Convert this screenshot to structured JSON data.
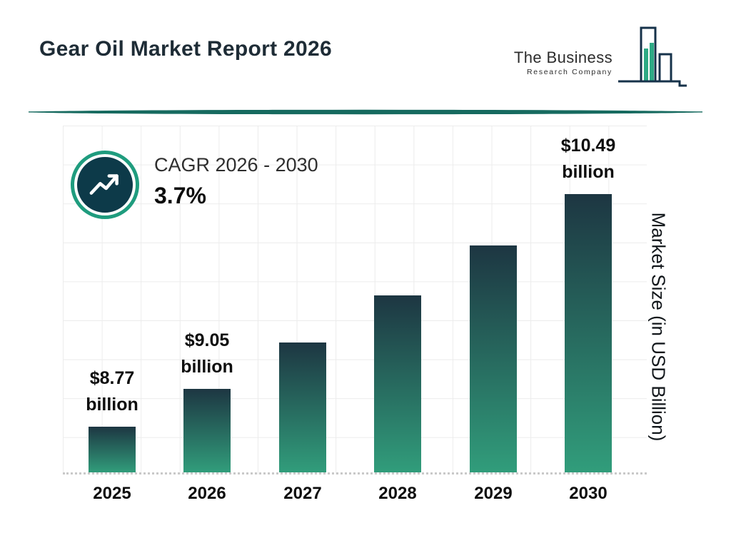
{
  "header": {
    "title": "Gear Oil Market Report 2026",
    "logo": {
      "line1": "The Business",
      "line2": "Research Company"
    }
  },
  "cagr": {
    "label": "CAGR 2026 - 2030",
    "value": "3.7%"
  },
  "chart_data": {
    "type": "bar",
    "title": "Gear Oil Market Report 2026",
    "categories": [
      "2025",
      "2026",
      "2027",
      "2028",
      "2029",
      "2030"
    ],
    "values": [
      8.77,
      9.05,
      9.39,
      9.74,
      10.11,
      10.49
    ],
    "value_labels": [
      [
        "$8.77",
        "billion"
      ],
      [
        "$9.05",
        "billion"
      ],
      null,
      null,
      null,
      [
        "$10.49",
        "billion"
      ]
    ],
    "xlabel": "",
    "ylabel": "Market Size (in USD Billion)",
    "grid": true,
    "legend": false,
    "colors": {
      "bar_top": "#1d3642",
      "bar_bottom": "#319d7b",
      "accent_teal": "#1f9c7e",
      "badge_fill": "#0d3a49",
      "divider": "#166a5f"
    }
  }
}
